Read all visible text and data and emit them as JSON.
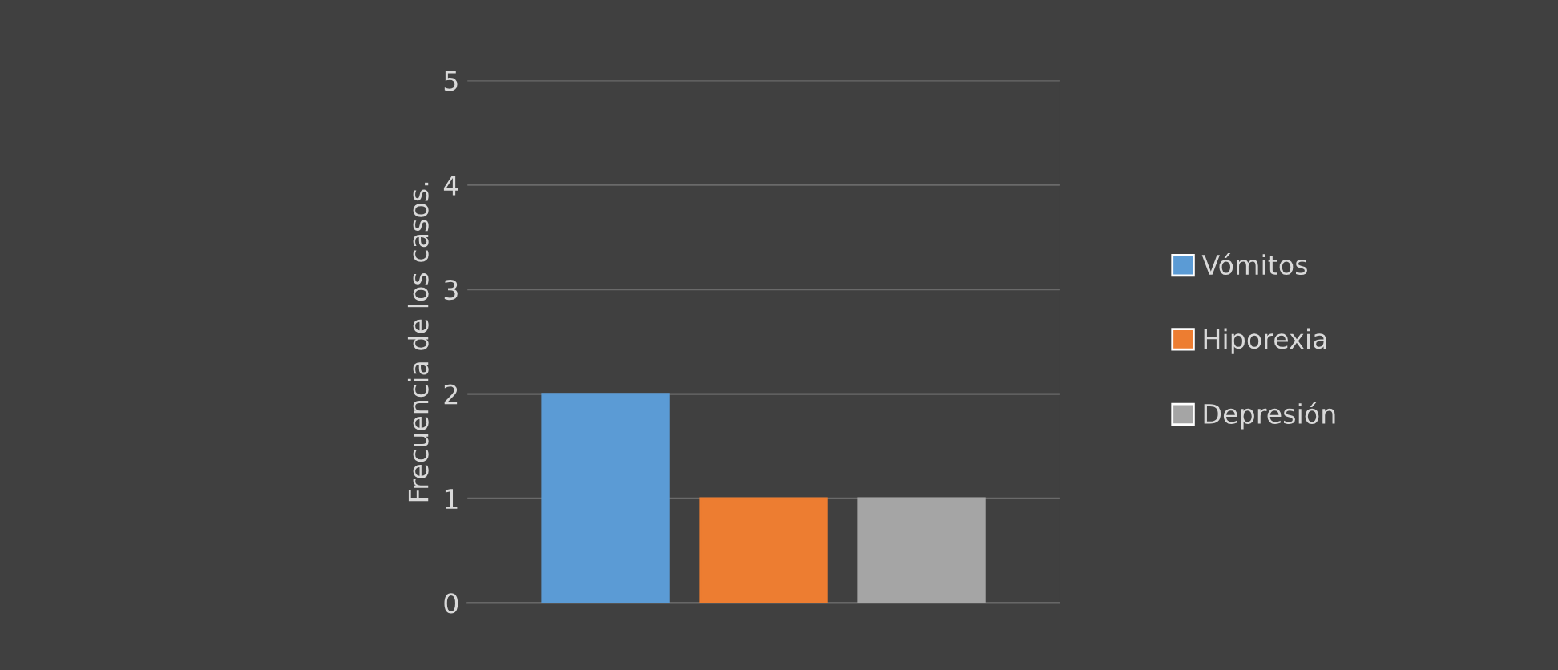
{
  "chart_data": {
    "type": "bar",
    "ylabel": "Frecuencia de los casos.",
    "categories": [
      null
    ],
    "series": [
      {
        "name": "Vómitos",
        "color": "#5b9bd5",
        "values": [
          2
        ]
      },
      {
        "name": "Hiporexia",
        "color": "#ed7d31",
        "values": [
          1
        ]
      },
      {
        "name": "Depresión",
        "color": "#a5a5a5",
        "values": [
          1
        ]
      }
    ],
    "ylim": [
      0,
      5
    ],
    "yticks": [
      0,
      1,
      2,
      3,
      4,
      5
    ],
    "grid": "y",
    "legend": "right"
  }
}
